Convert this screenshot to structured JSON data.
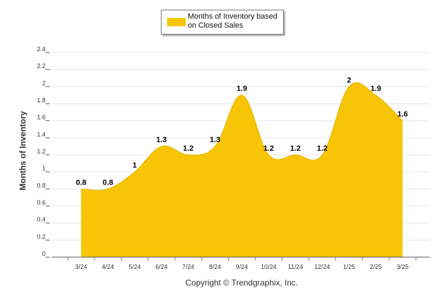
{
  "chart_data": {
    "type": "area",
    "categories": [
      "3/24",
      "4/24",
      "5/24",
      "6/24",
      "7/24",
      "8/24",
      "9/24",
      "10/24",
      "11/24",
      "12/24",
      "1/25",
      "2/25",
      "3/25"
    ],
    "series": [
      {
        "name": "Months of Inventory based on Closed Sales",
        "values": [
          0.8,
          0.8,
          1,
          1.3,
          1.2,
          1.3,
          1.9,
          1.2,
          1.2,
          1.2,
          2,
          1.9,
          1.6
        ],
        "labels": [
          "0.8",
          "0.8",
          "1",
          "1.3",
          "1.2",
          "1.3",
          "1.9",
          "1.2",
          "1.2",
          "1.2",
          "2",
          "1.9",
          "1.6"
        ]
      }
    ],
    "ylabel": "Months of Inventory",
    "ylim": [
      0,
      2.4
    ],
    "yticks": [
      "0",
      "0.2",
      "0.4",
      "0.6",
      "0.8",
      "1",
      "1.2",
      "1.4",
      "1.6",
      "1.8",
      "2",
      "2.2",
      "2.4"
    ],
    "grid": true,
    "legend_position": "top-center",
    "color": "#f7c505"
  },
  "legend": {
    "label": "Months of Inventory based on Closed Sales"
  },
  "footer": {
    "copyright": "Copyright © Trendgraphix, Inc."
  }
}
